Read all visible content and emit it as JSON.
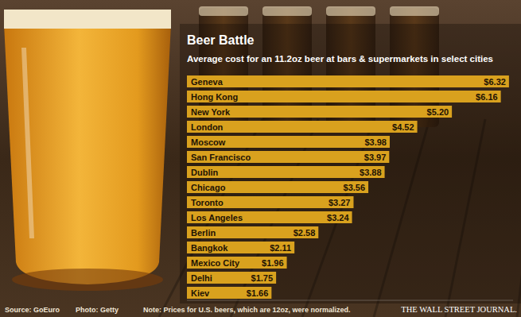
{
  "chart_data": {
    "type": "bar",
    "orientation": "horizontal",
    "title": "Beer Battle",
    "subtitle": "Average cost for an 11.2oz beer at bars & supermarkets in select cities",
    "categories": [
      "Geneva",
      "Hong Kong",
      "New York",
      "London",
      "Moscow",
      "San Francisco",
      "Dublin",
      "Chicago",
      "Toronto",
      "Los Angeles",
      "Berlin",
      "Bangkok",
      "Mexico City",
      "Delhi",
      "Kiev"
    ],
    "values": [
      6.32,
      6.16,
      5.2,
      4.52,
      3.98,
      3.97,
      3.88,
      3.56,
      3.27,
      3.24,
      2.58,
      2.11,
      1.96,
      1.75,
      1.66
    ],
    "value_labels": [
      "$6.32",
      "$6.16",
      "$5.20",
      "$4.52",
      "$3.98",
      "$3.97",
      "$3.88",
      "$3.56",
      "$3.27",
      "$3.24",
      "$2.58",
      "$2.11",
      "$1.96",
      "$1.75",
      "$1.66"
    ],
    "color": "#d9a11e",
    "xlim": [
      0,
      6.4
    ],
    "data_labels": true,
    "tick_labels": "y",
    "grid": false
  },
  "footer": {
    "source": "Source: GoEuro",
    "photo": "Photo: Getty",
    "note": "Note: Prices for U.S. beers, which are 12oz, were normalized.",
    "publisher": "THE WALL STREET JOURNAL."
  }
}
